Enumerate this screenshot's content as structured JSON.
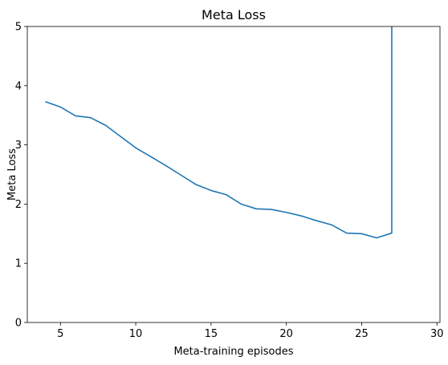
{
  "chart_data": {
    "type": "line",
    "title": "Meta Loss",
    "xlabel": "Meta-training episodes",
    "ylabel": "Meta Loss",
    "xlim": [
      2.8,
      30.2
    ],
    "ylim": [
      0,
      5
    ],
    "xticks": [
      5,
      10,
      15,
      20,
      25,
      30
    ],
    "yticks": [
      0,
      1,
      2,
      3,
      4,
      5
    ],
    "grid": false,
    "colors": {
      "series": "#1f77b4",
      "axis": "#000000"
    },
    "series": [
      {
        "x": [
          4,
          5,
          6,
          7,
          8,
          9,
          10,
          11,
          12,
          13,
          14,
          15,
          16,
          17,
          18,
          19,
          20,
          21,
          22,
          23,
          24,
          25,
          26,
          27,
          27
        ],
        "y": [
          3.73,
          3.64,
          3.49,
          3.46,
          3.33,
          3.14,
          2.95,
          2.8,
          2.65,
          2.49,
          2.33,
          2.23,
          2.16,
          2.0,
          1.92,
          1.91,
          1.86,
          1.8,
          1.72,
          1.65,
          1.51,
          1.5,
          1.43,
          1.51,
          5.0
        ]
      }
    ]
  }
}
